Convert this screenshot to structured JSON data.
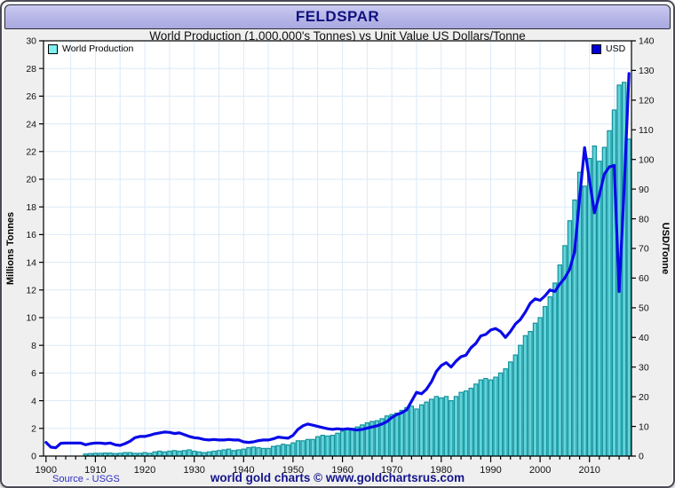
{
  "window": {
    "title": "FELDSPAR"
  },
  "subtitle": "World Production (1,000,000's Tonnes) vs Unit Value US Dollars/Tonne",
  "legend": {
    "left": {
      "label": "World Production",
      "swatch_color": "#7ff0f0"
    },
    "right": {
      "label": "USD",
      "swatch_color": "#0000dd"
    }
  },
  "footer": {
    "source": "Source - USGS",
    "copyright": "world gold charts © www.goldchartsrus.com"
  },
  "colors": {
    "bar_fill": "#62d4da",
    "bar_stroke": "#12929c",
    "line": "#0a0ae8",
    "grid": "#dbeaf7",
    "plot_border": "#000000",
    "title_text": "#10107e"
  },
  "chart_data": {
    "type": "bar+line",
    "title": "World Production (1,000,000's Tonnes) vs Unit Value US Dollars/Tonne",
    "x_start": 1900,
    "x_end": 2018,
    "x_ticks": [
      1900,
      1910,
      1920,
      1930,
      1940,
      1950,
      1960,
      1970,
      1980,
      1990,
      2000,
      2010
    ],
    "left_axis": {
      "label": "Millions Tonnes",
      "min": 0,
      "max": 30,
      "step": 2
    },
    "right_axis": {
      "label": "USD/Tonne",
      "min": 0,
      "max": 140,
      "step": 10
    },
    "grid": {
      "x_interval_years": 5,
      "show": true
    },
    "legend_position": "top-inside",
    "series": [
      {
        "name": "World Production",
        "type": "bar",
        "axis": "left",
        "units": "million tonnes",
        "values": [
          0,
          0,
          0,
          0,
          0,
          0,
          0,
          0,
          0.15,
          0.18,
          0.2,
          0.2,
          0.22,
          0.22,
          0.18,
          0.2,
          0.25,
          0.25,
          0.2,
          0.2,
          0.25,
          0.2,
          0.3,
          0.35,
          0.3,
          0.35,
          0.4,
          0.35,
          0.4,
          0.45,
          0.35,
          0.3,
          0.25,
          0.3,
          0.35,
          0.4,
          0.45,
          0.5,
          0.4,
          0.45,
          0.5,
          0.6,
          0.65,
          0.6,
          0.55,
          0.55,
          0.7,
          0.75,
          0.85,
          0.8,
          0.95,
          1.1,
          1.1,
          1.2,
          1.2,
          1.4,
          1.5,
          1.45,
          1.5,
          1.65,
          1.8,
          1.9,
          2.0,
          2.1,
          2.25,
          2.4,
          2.5,
          2.55,
          2.7,
          2.9,
          3.0,
          3.1,
          3.3,
          3.5,
          3.6,
          3.4,
          3.7,
          3.9,
          4.1,
          4.3,
          4.2,
          4.3,
          4.0,
          4.3,
          4.6,
          4.7,
          4.9,
          5.2,
          5.5,
          5.6,
          5.5,
          5.7,
          6.0,
          6.3,
          6.8,
          7.3,
          8.0,
          8.7,
          9.0,
          9.6,
          10.0,
          10.8,
          11.5,
          12.5,
          13.8,
          15.2,
          17.0,
          18.5,
          20.5,
          19.5,
          21.5,
          22.4,
          21.3,
          22.3,
          23.5,
          25.0,
          26.8,
          27.0,
          22.9
        ]
      },
      {
        "name": "USD",
        "type": "line",
        "axis": "right",
        "units": "USD/tonne",
        "values": [
          4.6,
          3.0,
          2.8,
          4.3,
          4.4,
          4.4,
          4.4,
          4.4,
          3.8,
          4.2,
          4.4,
          4.4,
          4.2,
          4.4,
          3.8,
          3.6,
          4.2,
          5.0,
          6.2,
          6.6,
          6.6,
          7.0,
          7.5,
          7.8,
          8.1,
          8.0,
          7.6,
          7.8,
          7.2,
          6.6,
          6.2,
          6.0,
          5.6,
          5.4,
          5.6,
          5.4,
          5.4,
          5.6,
          5.4,
          5.4,
          4.8,
          4.6,
          4.8,
          5.2,
          5.4,
          5.4,
          5.8,
          6.4,
          6.2,
          6.0,
          7.0,
          9.0,
          10.2,
          10.8,
          10.4,
          10.0,
          9.6,
          9.2,
          9.0,
          9.2,
          9.0,
          9.2,
          9.0,
          8.8,
          9.0,
          9.4,
          9.8,
          10.2,
          10.8,
          11.6,
          13.0,
          14.0,
          14.6,
          15.6,
          18.5,
          21.5,
          21.0,
          22.5,
          25.0,
          28.5,
          30.5,
          31.5,
          30.0,
          32.0,
          33.5,
          34.0,
          36.5,
          38.0,
          40.5,
          41.0,
          42.5,
          43.0,
          42.0,
          40.0,
          42.0,
          44.5,
          46.0,
          48.5,
          51.5,
          53.0,
          52.5,
          54.0,
          56.0,
          55.5,
          58.0,
          60.0,
          63.0,
          69.0,
          87.0,
          104.0,
          93.0,
          82.0,
          88.0,
          95.0,
          97.5,
          98.0,
          55.5,
          90.0,
          129.0
        ]
      }
    ]
  }
}
